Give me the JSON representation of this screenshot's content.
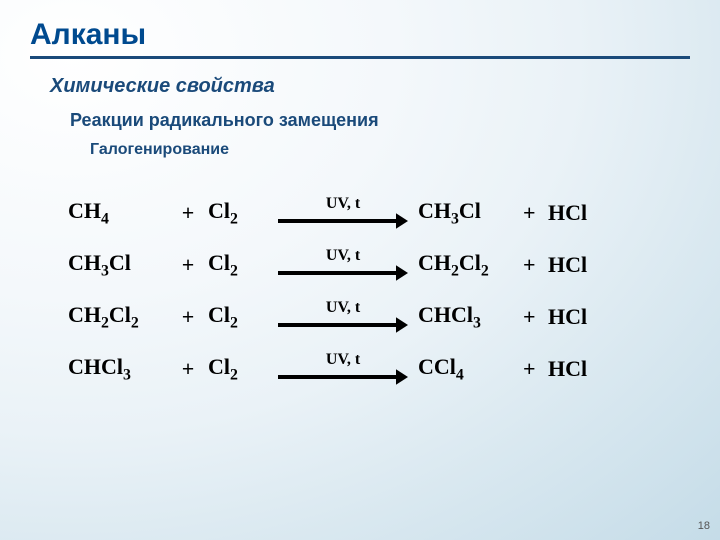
{
  "title": "Алканы",
  "subtitle1": "Химические свойства",
  "subtitle2": "Реакции радикального замещения",
  "subtitle3": "Галогенирование",
  "condition": "UV, t",
  "plus": "+",
  "equations": [
    {
      "r1": "CH<sub class='sub'>4</sub>",
      "r2": "Cl<sub class='sub'>2</sub>",
      "p1": "CH<sub class='sub'>3</sub>Cl",
      "p2": "HCl"
    },
    {
      "r1": "CH<sub class='sub'>3</sub>Cl",
      "r2": "Cl<sub class='sub'>2</sub>",
      "p1": "CH<sub class='sub'>2</sub>Cl<sub class='sub'>2</sub>",
      "p2": "HCl"
    },
    {
      "r1": "CH<sub class='sub'>2</sub>Cl<sub class='sub'>2</sub>",
      "r2": "Cl<sub class='sub'>2</sub>",
      "p1": "CHCl<sub class='sub'>3</sub>",
      "p2": "HCl"
    },
    {
      "r1": "CHCl<sub class='sub'>3</sub>",
      "r2": "Cl<sub class='sub'>2</sub>",
      "p1": "CCl<sub class='sub'>4</sub>",
      "p2": "HCl"
    }
  ],
  "arrow": {
    "length": 130,
    "stroke": "#000000",
    "strokeWidth": 4,
    "headSize": 12
  },
  "pageNumber": "18",
  "colors": {
    "titleColor": "#004a8f",
    "ruleColor": "#1a4a7a",
    "subColor": "#1a4a7a",
    "textColor": "#000000"
  }
}
